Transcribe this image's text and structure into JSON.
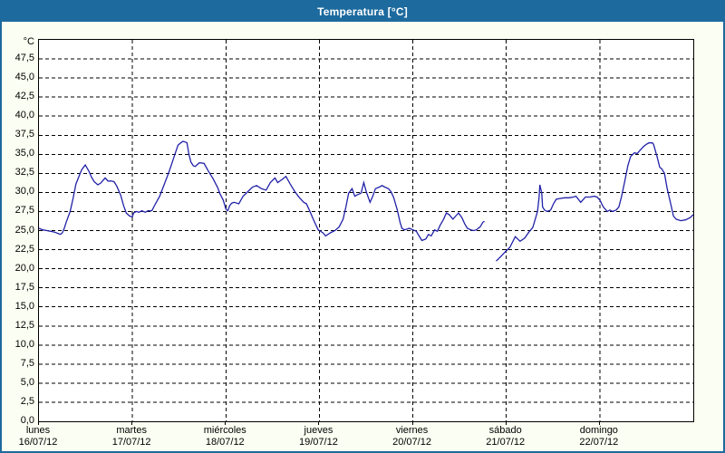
{
  "window": {
    "title": "Temperatura [°C]"
  },
  "colors": {
    "titlebar_bg": "#1d6a9e",
    "titlebar_text": "#ffffff",
    "window_bg": "#fbfef2",
    "plot_bg": "#ffffff",
    "grid": "#000000",
    "line": "#2121a8"
  },
  "chart_data": {
    "type": "line",
    "title": "Temperatura [°C]",
    "y_unit": "°C",
    "ylim": [
      0,
      50
    ],
    "ytick_step": 2.5,
    "ytick_labels": [
      "0,0",
      "2,5",
      "5,0",
      "7,5",
      "10,0",
      "12,5",
      "15,0",
      "17,5",
      "20,0",
      "22,5",
      "25,0",
      "27,5",
      "30,0",
      "32,5",
      "35,0",
      "37,5",
      "40,0",
      "42,5",
      "45,0",
      "47,5"
    ],
    "grid": "dashed",
    "legend": "none",
    "x_hours_range": [
      0,
      168
    ],
    "x_ticks": [
      {
        "hour": 0,
        "day": "lunes",
        "date": "16/07/12"
      },
      {
        "hour": 24,
        "day": "martes",
        "date": "17/07/12"
      },
      {
        "hour": 48,
        "day": "miércoles",
        "date": "18/07/12"
      },
      {
        "hour": 72,
        "day": "jueves",
        "date": "19/07/12"
      },
      {
        "hour": 96,
        "day": "viernes",
        "date": "20/07/12"
      },
      {
        "hour": 120,
        "day": "sábado",
        "date": "21/07/12"
      },
      {
        "hour": 144,
        "day": "domingo",
        "date": "22/07/12"
      }
    ],
    "series": [
      {
        "name": "Temperatura",
        "color": "#2121a8",
        "segments": [
          [
            [
              0,
              25.3
            ],
            [
              1,
              25.1
            ],
            [
              2,
              25.0
            ],
            [
              3,
              24.9
            ],
            [
              4,
              24.8
            ],
            [
              5,
              24.6
            ],
            [
              5.5,
              24.5
            ],
            [
              6,
              24.7
            ],
            [
              6.5,
              25.3
            ],
            [
              7,
              26.1
            ],
            [
              8,
              27.5
            ],
            [
              8.8,
              29.3
            ],
            [
              9.5,
              31.1
            ],
            [
              10.5,
              32.4
            ],
            [
              11,
              33.0
            ],
            [
              11.9,
              33.6
            ],
            [
              12.8,
              32.8
            ],
            [
              13.5,
              32.0
            ],
            [
              14.2,
              31.4
            ],
            [
              15.1,
              31.0
            ],
            [
              15.8,
              31.2
            ],
            [
              17,
              31.9
            ],
            [
              17.7,
              31.5
            ],
            [
              18.6,
              31.5
            ],
            [
              19.3,
              31.4
            ],
            [
              20,
              30.8
            ],
            [
              21,
              29.6
            ],
            [
              21.7,
              28.3
            ],
            [
              22.4,
              27.3
            ],
            [
              23.3,
              26.9
            ],
            [
              24,
              26.8
            ],
            [
              24.3,
              27.3
            ],
            [
              25,
              27.5
            ],
            [
              25.7,
              27.4
            ],
            [
              26.4,
              27.6
            ],
            [
              27.3,
              27.4
            ],
            [
              28,
              27.6
            ],
            [
              29,
              27.6
            ],
            [
              29.9,
              28.5
            ],
            [
              31,
              29.5
            ],
            [
              32.2,
              31.1
            ],
            [
              33.4,
              32.7
            ],
            [
              34.5,
              34.4
            ],
            [
              35.7,
              36.2
            ],
            [
              36.4,
              36.5
            ],
            [
              37,
              36.7
            ],
            [
              37.6,
              36.6
            ],
            [
              38,
              36.5
            ],
            [
              38.5,
              35.0
            ],
            [
              39,
              34.0
            ],
            [
              39.6,
              33.5
            ],
            [
              40.1,
              33.4
            ],
            [
              41.2,
              33.9
            ],
            [
              42.4,
              33.8
            ],
            [
              43.5,
              32.8
            ],
            [
              44.7,
              31.8
            ],
            [
              45.9,
              30.6
            ],
            [
              46.5,
              29.8
            ],
            [
              47.3,
              29.0
            ],
            [
              48,
              27.8
            ],
            [
              48.5,
              27.6
            ],
            [
              49,
              28.3
            ],
            [
              49.5,
              28.6
            ],
            [
              50.1,
              28.7
            ],
            [
              51.3,
              28.5
            ],
            [
              52.4,
              29.5
            ],
            [
              53.6,
              30.1
            ],
            [
              54.8,
              30.7
            ],
            [
              55.9,
              30.9
            ],
            [
              57.1,
              30.5
            ],
            [
              58.3,
              30.3
            ],
            [
              59.4,
              31.3
            ],
            [
              60.6,
              31.9
            ],
            [
              61.3,
              31.3
            ],
            [
              62.4,
              31.7
            ],
            [
              63.4,
              32.1
            ],
            [
              64.5,
              31.1
            ],
            [
              65.7,
              30.1
            ],
            [
              66.9,
              29.3
            ],
            [
              68,
              28.7
            ],
            [
              68.7,
              28.5
            ],
            [
              69.4,
              27.7
            ],
            [
              70.6,
              26.3
            ],
            [
              71.7,
              25.1
            ],
            [
              72,
              25.0
            ],
            [
              72.9,
              24.7
            ],
            [
              73.6,
              24.3
            ],
            [
              74.8,
              24.7
            ],
            [
              76,
              25.0
            ],
            [
              77.1,
              25.5
            ],
            [
              78.1,
              26.5
            ],
            [
              78.8,
              28.1
            ],
            [
              79.5,
              29.9
            ],
            [
              80.4,
              30.5
            ],
            [
              81.1,
              29.5
            ],
            [
              81.8,
              29.7
            ],
            [
              82.7,
              29.9
            ],
            [
              83.4,
              31.3
            ],
            [
              84.1,
              30.0
            ],
            [
              85,
              28.7
            ],
            [
              85.7,
              29.5
            ],
            [
              86.4,
              30.5
            ],
            [
              87.4,
              30.7
            ],
            [
              88.1,
              30.9
            ],
            [
              88.8,
              30.7
            ],
            [
              89.7,
              30.5
            ],
            [
              90.4,
              30.1
            ],
            [
              91.1,
              29.3
            ],
            [
              92,
              27.7
            ],
            [
              92.7,
              26.1
            ],
            [
              93.2,
              25.3
            ],
            [
              93.9,
              25.1
            ],
            [
              95.1,
              25.3
            ],
            [
              96,
              25.1
            ],
            [
              96.9,
              24.9
            ],
            [
              97.6,
              24.3
            ],
            [
              98.3,
              23.7
            ],
            [
              99.3,
              23.9
            ],
            [
              100,
              24.5
            ],
            [
              100.7,
              24.3
            ],
            [
              101.6,
              25.1
            ],
            [
              102.3,
              24.9
            ],
            [
              103,
              25.7
            ],
            [
              103.9,
              26.5
            ],
            [
              104.6,
              27.3
            ],
            [
              105.3,
              27.1
            ],
            [
              106.3,
              26.5
            ],
            [
              107,
              26.9
            ],
            [
              107.7,
              27.3
            ],
            [
              108.6,
              26.7
            ],
            [
              109.3,
              25.9
            ],
            [
              110,
              25.3
            ],
            [
              110.9,
              25.1
            ],
            [
              111.6,
              25.0
            ],
            [
              112.3,
              25.1
            ],
            [
              113.3,
              25.5
            ],
            [
              114,
              26.1
            ],
            [
              114.4,
              26.2
            ]
          ],
          [
            [
              117.4,
              21.0
            ],
            [
              118.6,
              21.6
            ],
            [
              119.7,
              22.2
            ],
            [
              120.9,
              22.8
            ],
            [
              122.3,
              24.2
            ],
            [
              123.5,
              23.6
            ],
            [
              124.7,
              24.0
            ],
            [
              125.8,
              24.8
            ],
            [
              126.8,
              25.4
            ],
            [
              127.5,
              26.6
            ],
            [
              128,
              27.5
            ],
            [
              128.4,
              29.3
            ],
            [
              128.6,
              31.0
            ],
            [
              129.1,
              29.9
            ],
            [
              129.3,
              28.1
            ],
            [
              129.8,
              27.7
            ],
            [
              130.5,
              27.5
            ],
            [
              131.4,
              27.7
            ],
            [
              132.1,
              28.5
            ],
            [
              132.8,
              29.1
            ],
            [
              133.7,
              29.2
            ],
            [
              135,
              29.3
            ],
            [
              136.1,
              29.3
            ],
            [
              137.2,
              29.4
            ],
            [
              137.9,
              29.5
            ],
            [
              139.1,
              28.7
            ],
            [
              140.3,
              29.4
            ],
            [
              141.4,
              29.4
            ],
            [
              142.6,
              29.5
            ],
            [
              143.3,
              29.4
            ],
            [
              144,
              29.0
            ],
            [
              144.9,
              28.1
            ],
            [
              145.9,
              27.5
            ],
            [
              146.6,
              27.7
            ],
            [
              147.3,
              27.5
            ],
            [
              148.2,
              27.7
            ],
            [
              148.9,
              28.1
            ],
            [
              149.6,
              29.5
            ],
            [
              150.5,
              31.7
            ],
            [
              151.2,
              33.5
            ],
            [
              151.9,
              34.7
            ],
            [
              152.9,
              35.2
            ],
            [
              153.6,
              35.1
            ],
            [
              154.3,
              35.5
            ],
            [
              155.2,
              36.0
            ],
            [
              155.9,
              36.3
            ],
            [
              156.6,
              36.5
            ],
            [
              157.5,
              36.5
            ],
            [
              157.8,
              36.3
            ],
            [
              158.7,
              34.7
            ],
            [
              159.4,
              33.3
            ],
            [
              159.9,
              33.1
            ],
            [
              160.6,
              32.5
            ],
            [
              161.3,
              30.5
            ],
            [
              162.2,
              28.5
            ],
            [
              162.9,
              26.9
            ],
            [
              163.6,
              26.5
            ],
            [
              164.8,
              26.3
            ],
            [
              166,
              26.4
            ],
            [
              167.2,
              26.7
            ],
            [
              168,
              27.1
            ]
          ]
        ]
      }
    ]
  }
}
